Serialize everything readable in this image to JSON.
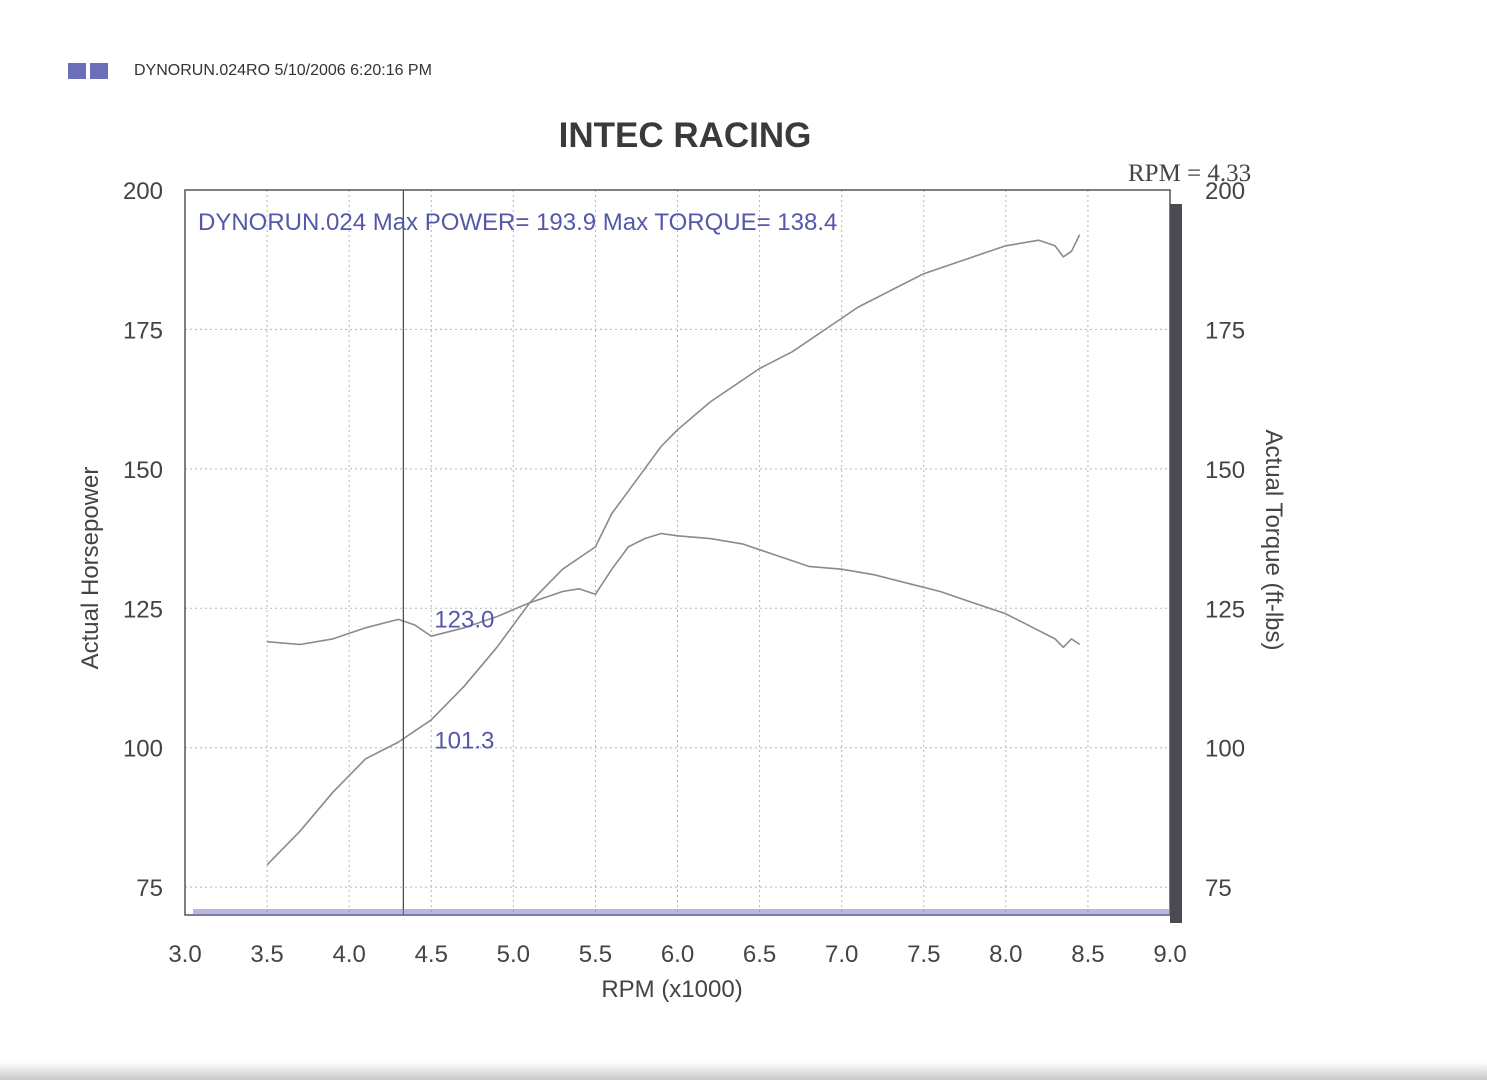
{
  "header": {
    "run_info": "DYNORUN.024RO  5/10/2006 6:20:16 PM",
    "square_colors": [
      "#6b6fb7",
      "#6b6fb7"
    ]
  },
  "rpm_readout": "RPM = 4.33",
  "chart_data": {
    "type": "line",
    "title": "INTEC RACING",
    "xlabel": "RPM (x1000)",
    "ylabel": "Actual Horsepower",
    "y2label": "Actual Torque (ft-lbs)",
    "xlim": [
      3.0,
      9.0
    ],
    "ylim": [
      70,
      200
    ],
    "y2lim": [
      70,
      200
    ],
    "x_ticks": [
      "3.0",
      "3.5",
      "4.0",
      "4.5",
      "5.0",
      "5.5",
      "6.0",
      "6.5",
      "7.0",
      "7.5",
      "8.0",
      "8.5",
      "9.0"
    ],
    "y_ticks": [
      "75",
      "100",
      "125",
      "150",
      "175",
      "200"
    ],
    "y2_ticks": [
      "75",
      "100",
      "125",
      "150",
      "175",
      "200"
    ],
    "grid": true,
    "legend_text": "DYNORUN.024  Max POWER= 193.9  Max TORQUE= 138.4",
    "cursor": {
      "x": 4.33,
      "labels": [
        "123.0",
        "101.3"
      ]
    },
    "series": [
      {
        "name": "Actual Horsepower",
        "axis": "left",
        "color": "#8a8a8a",
        "x": [
          3.5,
          3.7,
          3.9,
          4.1,
          4.3,
          4.5,
          4.7,
          4.9,
          5.1,
          5.3,
          5.5,
          5.6,
          5.7,
          5.8,
          5.9,
          6.0,
          6.2,
          6.4,
          6.5,
          6.7,
          6.9,
          7.1,
          7.3,
          7.5,
          7.7,
          7.9,
          8.0,
          8.1,
          8.2,
          8.3,
          8.35,
          8.4,
          8.45
        ],
        "y": [
          79,
          85,
          92,
          98,
          101,
          105,
          111,
          118,
          126,
          132,
          136,
          142,
          146,
          150,
          154,
          157,
          162,
          166,
          168,
          171,
          175,
          179,
          182,
          185,
          187,
          189,
          190,
          190.5,
          191,
          190,
          188,
          189,
          192
        ]
      },
      {
        "name": "Actual Torque",
        "axis": "right",
        "color": "#8a8a8a",
        "x": [
          3.5,
          3.7,
          3.9,
          4.1,
          4.3,
          4.4,
          4.5,
          4.7,
          4.9,
          5.1,
          5.3,
          5.4,
          5.5,
          5.6,
          5.7,
          5.8,
          5.9,
          6.0,
          6.2,
          6.4,
          6.6,
          6.8,
          7.0,
          7.2,
          7.4,
          7.6,
          7.8,
          8.0,
          8.1,
          8.2,
          8.3,
          8.35,
          8.4,
          8.45
        ],
        "y": [
          119,
          118.5,
          119.5,
          121.5,
          123,
          122,
          120,
          121.5,
          123.5,
          126,
          128,
          128.5,
          127.5,
          132,
          136,
          137.5,
          138.4,
          138,
          137.5,
          136.5,
          134.5,
          132.5,
          132,
          131,
          129.5,
          128,
          126,
          124,
          122.5,
          121,
          119.5,
          118,
          119.5,
          118.5
        ]
      }
    ]
  }
}
